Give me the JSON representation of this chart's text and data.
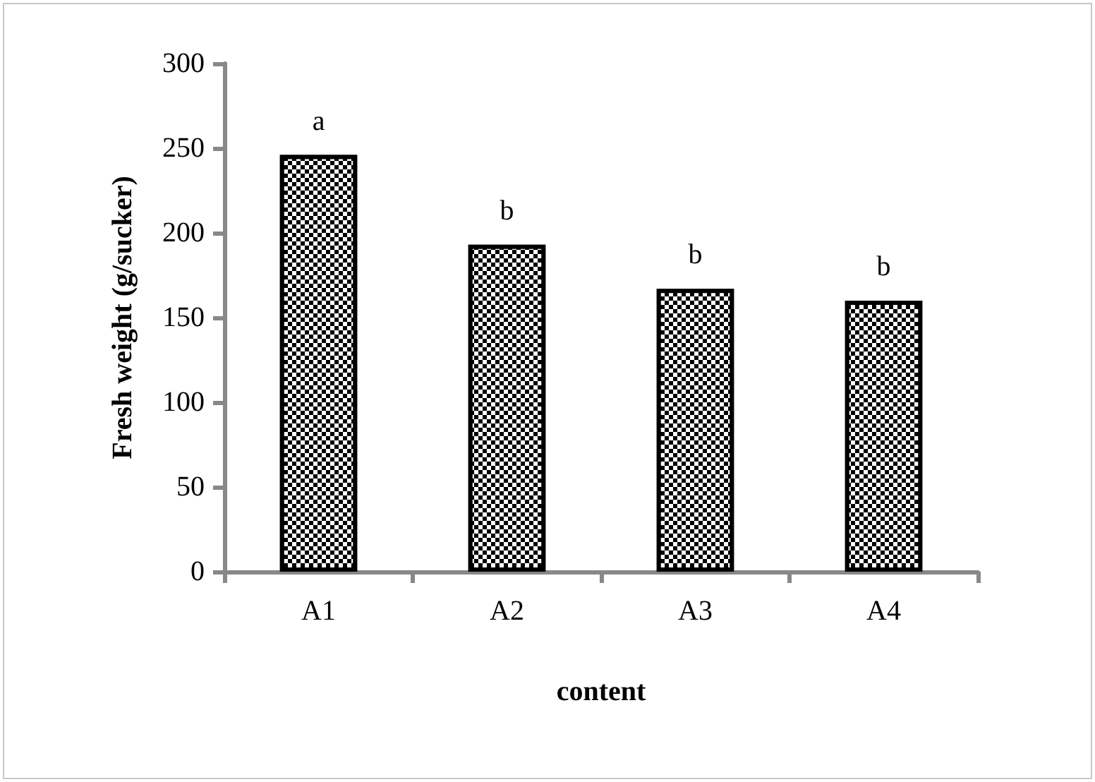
{
  "chart_data": {
    "type": "bar",
    "xlabel": "content",
    "ylabel": "Fresh weight (g/sucker)",
    "categories": [
      "A1",
      "A2",
      "A3",
      "A4"
    ],
    "values": [
      246,
      193,
      167,
      160
    ],
    "color": "#000000",
    "ylim": [
      0,
      300
    ],
    "yticks": [
      0,
      50,
      100,
      150,
      200,
      250,
      300
    ],
    "grid": false,
    "annotations": [
      {
        "text": "a",
        "x": "A1",
        "y": 246
      },
      {
        "text": "b",
        "x": "A2",
        "y": 193
      },
      {
        "text": "b",
        "x": "A3",
        "y": 167
      },
      {
        "text": "b",
        "x": "A4",
        "y": 160
      }
    ]
  }
}
